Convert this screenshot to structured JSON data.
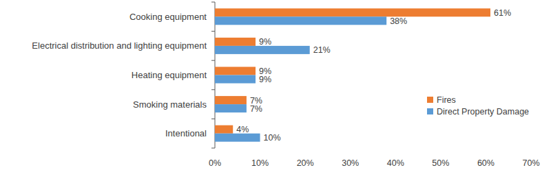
{
  "chart_data": {
    "type": "bar",
    "orientation": "horizontal",
    "categories": [
      "Cooking equipment",
      "Electrical distribution and lighting equipment",
      "Heating equipment",
      "Smoking materials",
      "Intentional"
    ],
    "series": [
      {
        "name": "Fires",
        "color": "#ed7d31",
        "values": [
          61,
          9,
          9,
          7,
          4
        ],
        "value_labels": [
          "61%",
          "9%",
          "9%",
          "7%",
          "4%"
        ]
      },
      {
        "name": "Direct Property Damage",
        "color": "#5b9bd5",
        "values": [
          38,
          21,
          9,
          7,
          10
        ],
        "value_labels": [
          "38%",
          "21%",
          "9%",
          "7%",
          "10%"
        ]
      }
    ],
    "xlim": [
      0,
      70
    ],
    "xticks": [
      {
        "value": 0,
        "label": "0%"
      },
      {
        "value": 10,
        "label": "10%"
      },
      {
        "value": 20,
        "label": "20%"
      },
      {
        "value": 30,
        "label": "30%"
      },
      {
        "value": 40,
        "label": "40%"
      },
      {
        "value": 50,
        "label": "50%"
      },
      {
        "value": 60,
        "label": "60%"
      },
      {
        "value": 70,
        "label": "70%"
      }
    ],
    "grid": false,
    "legend": "right",
    "data_labels": true
  }
}
